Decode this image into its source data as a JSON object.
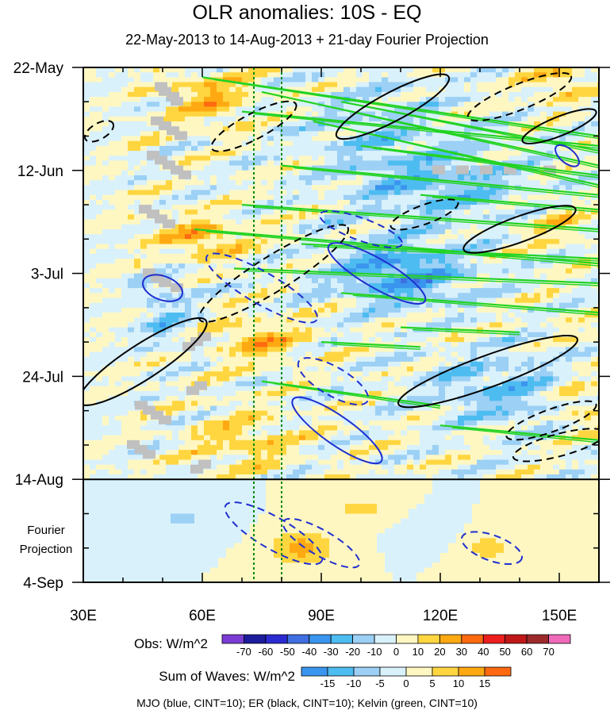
{
  "chart_data": {
    "type": "heatmap",
    "title": "OLR anomalies: 10S - EQ",
    "subtitle": "22-May-2013 to 14-Aug-2013 + 21-day Fourier Projection",
    "x_axis": {
      "range": [
        30,
        160
      ],
      "ticks": [
        30,
        60,
        90,
        120,
        150
      ],
      "tick_labels": [
        "30E",
        "60E",
        "90E",
        "120E",
        "150E"
      ]
    },
    "y_axis": {
      "range": [
        "22-May-2013",
        "4-Sep-2013"
      ],
      "inverted": true,
      "ticks": [
        "22-May",
        "12-Jun",
        "3-Jul",
        "24-Jul",
        "14-Aug",
        "4-Sep"
      ],
      "tick_labels": [
        "22-May",
        "12-Jun",
        "3-Jul",
        "24-Jul",
        "14-Aug",
        "4-Sep"
      ],
      "projection_label": [
        "Fourier",
        "Projection"
      ],
      "observation_end": "14-Aug"
    },
    "reference_lines_lon": [
      73,
      80
    ],
    "colorbars": [
      {
        "label": "Obs: W/m^2",
        "levels": [
          -70,
          -60,
          -50,
          -40,
          -30,
          -20,
          -10,
          0,
          10,
          20,
          30,
          40,
          50,
          60,
          70
        ],
        "colors": [
          "#7b3cd6",
          "#1c1c9c",
          "#2b2bd2",
          "#3f6fe0",
          "#3a95ee",
          "#4dbcf0",
          "#9cd0f5",
          "#d9f1fb",
          "#fff7c2",
          "#ffd640",
          "#ffa912",
          "#ff6a10",
          "#ec1e1e",
          "#c01818",
          "#9c2a2a",
          "#f06aba"
        ]
      },
      {
        "label": "Sum of Waves: W/m^2",
        "levels": [
          -15,
          -10,
          -5,
          0,
          5,
          10,
          15
        ],
        "colors": [
          "#3a95ee",
          "#4dbcf0",
          "#9cd0f5",
          "#d9f1fb",
          "#fff7c2",
          "#ffd640",
          "#ffa912",
          "#ff6a10"
        ]
      }
    ],
    "contours": [
      {
        "name": "MJO",
        "color": "blue",
        "cint": 10
      },
      {
        "name": "ER",
        "color": "black",
        "cint": 10
      },
      {
        "name": "Kelvin",
        "color": "green",
        "cint": 10
      }
    ],
    "footer": "MJO (blue, CINT=10); ER (black, CINT=10); Kelvin (green, CINT=10)",
    "colors": {
      "mjo": "#1f2fd0",
      "er": "#000000",
      "kelvin": "#22d322",
      "refline": "#0a8a0a",
      "missing": "#c0c0c0"
    }
  }
}
